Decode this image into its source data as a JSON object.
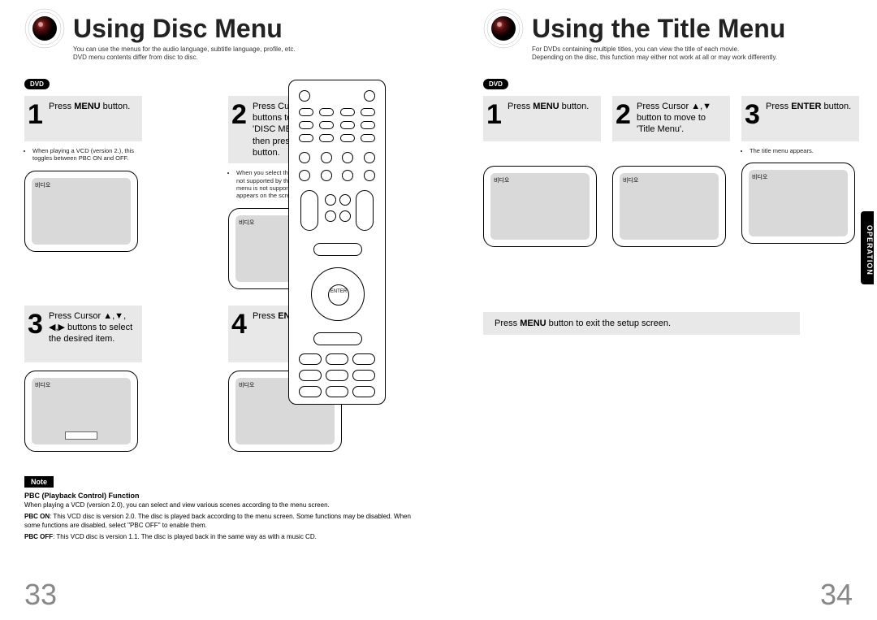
{
  "left": {
    "title": "Using Disc Menu",
    "subtitle1": "You can use the menus for the audio language, subtitle language, profile, etc.",
    "subtitle2": "DVD menu contents differ from disc to disc.",
    "badge": "DVD",
    "steps": [
      {
        "num": "1",
        "text": "Press <b>MENU</b> button.",
        "sub": "When playing a VCD (version 2.), this toggles between PBC ON and OFF."
      },
      {
        "num": "2",
        "text": "Press Cursor ▲,▼ buttons to move to 'DISC MENU' and then press <b>ENTER</b> button.",
        "sub": "When you select the disc menu that is not supported by the disc, the \"This menu is not supported\" message appears on the screen."
      },
      {
        "num": "3",
        "text": "Press Cursor ▲,▼, ◀,▶ buttons to select the desired item.",
        "sub": ""
      },
      {
        "num": "4",
        "text": "Press <b>ENTER</b> button.",
        "sub": ""
      }
    ],
    "tv_label": "비디오",
    "note_badge": "Note",
    "note_title": "PBC (Playback Control) Function",
    "note_text": "When playing a VCD (version 2.0), you can select and view various scenes according to the menu screen.",
    "note_on": "<b>PBC ON</b>: This VCD disc is version 2.0. The disc is played back according to the menu screen. Some functions may be disabled. When some functions are disabled, select \"PBC OFF\" to enable them.",
    "note_off": "<b>PBC OFF</b>: This VCD disc is version 1.1. The disc is played back in the same way as with a music CD.",
    "page_num": "33"
  },
  "right": {
    "title": "Using the Title Menu",
    "subtitle1": "For DVDs containing multiple titles, you can view the title of each movie.",
    "subtitle2": "Depending on the disc, this function may either not work at all or may work differently.",
    "badge": "DVD",
    "steps": [
      {
        "num": "1",
        "text": "Press <b>MENU</b> button.",
        "sub": ""
      },
      {
        "num": "2",
        "text": "Press Cursor ▲,▼ button to move to 'Title Menu'.",
        "sub": ""
      },
      {
        "num": "3",
        "text": "Press <b>ENTER</b> button.",
        "sub": "The title menu appears."
      }
    ],
    "tv_label": "비디오",
    "exit": "Press <b>MENU</b> button to exit the setup screen.",
    "side_tab": "OPERATION",
    "page_num": "34"
  },
  "remote": {
    "enter": "ENTER"
  },
  "colors": {
    "step_bg": "#e8e8e8",
    "tv_inner": "#d9d9d9",
    "page_num": "#888888"
  }
}
